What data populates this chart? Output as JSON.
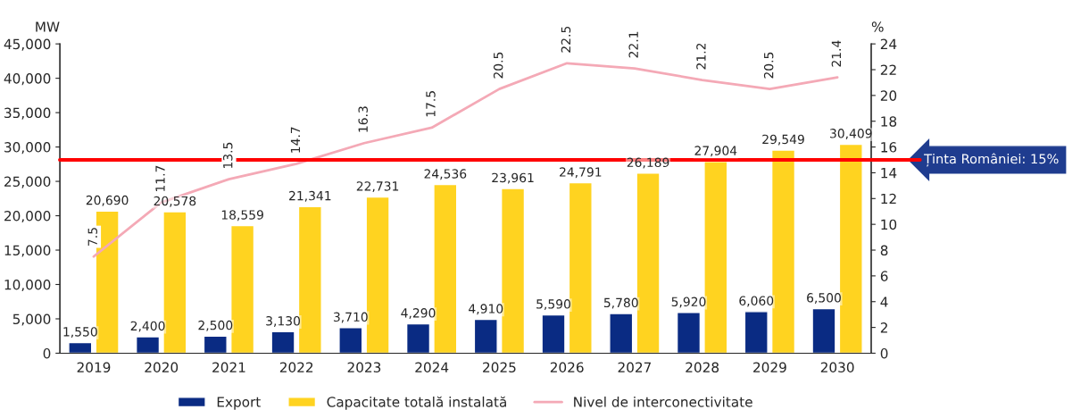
{
  "chart_data": {
    "type": "bar",
    "categories": [
      "2019",
      "2020",
      "2021",
      "2022",
      "2023",
      "2024",
      "2025",
      "2026",
      "2027",
      "2028",
      "2029",
      "2030"
    ],
    "series": [
      {
        "name": "Export",
        "color": "#0a2b83",
        "values": [
          1550,
          2400,
          2500,
          3130,
          3710,
          4290,
          4910,
          5590,
          5780,
          5920,
          6060,
          6500
        ],
        "value_labels": [
          "1,550",
          "2,400",
          "2,500",
          "3,130",
          "3,710",
          "4,290",
          "4,910",
          "5,590",
          "5,780",
          "5,920",
          "6,060",
          "6,500"
        ]
      },
      {
        "name": "Capacitate totală instalată",
        "color": "#ffd320",
        "values": [
          20690,
          20578,
          18559,
          21341,
          22731,
          24536,
          23961,
          24791,
          26189,
          27904,
          29549,
          30409
        ],
        "value_labels": [
          "20,690",
          "20,578",
          "18,559",
          "21,341",
          "22,731",
          "24,536",
          "23,961",
          "24,791",
          "26,189",
          "27,904",
          "29,549",
          "30,409"
        ]
      },
      {
        "name": "Nivel de interconectivitate",
        "color": "#f4a9b6",
        "type": "line",
        "axis": "y2",
        "values": [
          7.5,
          11.7,
          13.5,
          14.7,
          16.3,
          17.5,
          20.5,
          22.5,
          22.1,
          21.2,
          20.5,
          21.4
        ],
        "value_labels": [
          "7.5",
          "11.7",
          "13.5",
          "14.7",
          "16.3",
          "17.5",
          "20.5",
          "22.5",
          "22.1",
          "21.2",
          "20.5",
          "21.4"
        ]
      }
    ],
    "ylabel": "MW",
    "y2label": "%",
    "ylim": [
      0,
      45000
    ],
    "yticks": [
      {
        "value": 0,
        "label": "0"
      },
      {
        "value": 5000,
        "label": "5,000"
      },
      {
        "value": 10000,
        "label": "10,000"
      },
      {
        "value": 15000,
        "label": "15,000"
      },
      {
        "value": 20000,
        "label": "20,000"
      },
      {
        "value": 25000,
        "label": "25,000"
      },
      {
        "value": 30000,
        "label": "30,000"
      },
      {
        "value": 35000,
        "label": "35,000"
      },
      {
        "value": 40000,
        "label": "40,000"
      },
      {
        "value": 45000,
        "label": "45,000"
      }
    ],
    "y2lim": [
      0,
      24
    ],
    "y2ticks": [
      0,
      2,
      4,
      6,
      8,
      10,
      12,
      14,
      16,
      18,
      20,
      22,
      24
    ],
    "ref_lines": [
      {
        "axis": "y2",
        "value": 15,
        "label": "Ținta României: 15%",
        "color": "#ff0000"
      }
    ],
    "legend": "bottom",
    "grid": false
  }
}
